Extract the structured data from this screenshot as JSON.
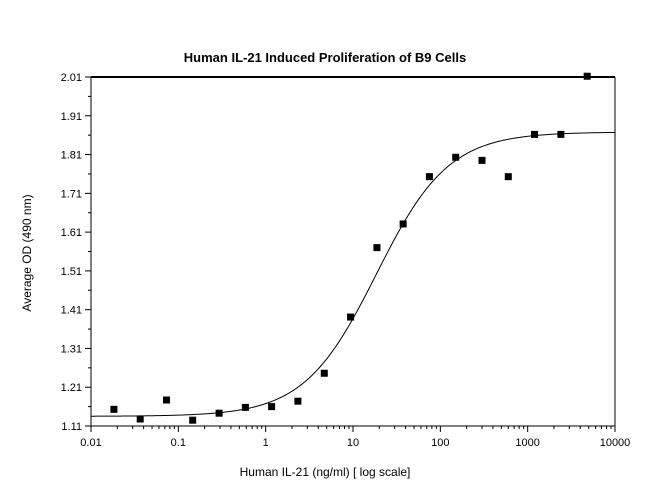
{
  "chart_data": {
    "type": "scatter",
    "title": "Human IL-21 Induced Proliferation of B9 Cells",
    "xlabel": "Human IL-21 (ng/ml) [ log scale]",
    "ylabel": "Average OD (490 nm)",
    "x_scale": "log",
    "xlim": [
      0.01,
      10000
    ],
    "ylim": [
      1.11,
      2.01
    ],
    "x_ticks": [
      0.01,
      0.1,
      1,
      10,
      100,
      1000,
      10000
    ],
    "x_tick_labels": [
      "0.01",
      "0.1",
      "1",
      "10",
      "100",
      "1000",
      "10000"
    ],
    "y_ticks": [
      1.11,
      1.21,
      1.31,
      1.41,
      1.51,
      1.61,
      1.71,
      1.81,
      1.91,
      2.01
    ],
    "y_tick_labels": [
      "1.11",
      "1.21",
      "1.31",
      "1.41",
      "1.51",
      "1.61",
      "1.71",
      "1.81",
      "1.91",
      "2.01"
    ],
    "grid": false,
    "legend": "none",
    "points": {
      "x": [
        0.0183,
        0.0366,
        0.0732,
        0.146,
        0.293,
        0.586,
        1.17,
        2.34,
        4.69,
        9.38,
        18.8,
        37.5,
        75,
        150,
        300,
        600,
        1200,
        2400,
        4800
      ],
      "y": [
        1.153,
        1.128,
        1.177,
        1.125,
        1.143,
        1.158,
        1.16,
        1.174,
        1.246,
        1.391,
        1.57,
        1.631,
        1.753,
        1.803,
        1.795,
        1.753,
        1.862,
        1.862,
        2.012
      ]
    },
    "fit_curve": {
      "bottom": 1.135,
      "top": 1.868,
      "ec50": 18.5,
      "hill_slope": 1.05
    },
    "colors": {
      "marker": "#000000",
      "curve": "#000000",
      "axes": "#000000"
    }
  }
}
